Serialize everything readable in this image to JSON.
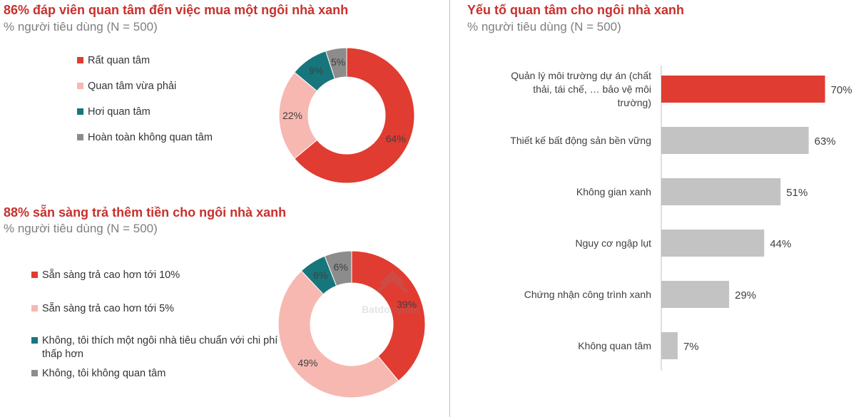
{
  "colors": {
    "red": "#e03c31",
    "pink": "#f7b8b2",
    "teal": "#17767b",
    "grey": "#8c8c8c",
    "bar_grey": "#c3c3c3",
    "title_red": "#c9302c"
  },
  "watermark": {
    "text": "Batdongsan"
  },
  "chart_data": [
    {
      "type": "pie",
      "title": "86% đáp viên quan tâm đến việc mua một ngôi nhà xanh",
      "subtitle": "% người tiêu dùng (N = 500)",
      "legend_position": "left",
      "categories": [
        "Rất quan tâm",
        "Quan tâm vừa phải",
        "Hơi quan tâm",
        "Hoàn toàn không quan tâm"
      ],
      "values": [
        64,
        22,
        9,
        5
      ],
      "labels": [
        "64%",
        "22%",
        "9%",
        "5%"
      ],
      "colors": [
        "#e03c31",
        "#f7b8b2",
        "#17767b",
        "#8c8c8c"
      ]
    },
    {
      "type": "pie",
      "title": "88% sẵn sàng trả thêm tiền cho ngôi nhà xanh",
      "subtitle": "% người tiêu dùng (N = 500)",
      "legend_position": "left",
      "categories": [
        "Sẵn sàng trả cao hơn tới 10%",
        "Sẵn sàng trả cao hơn tới 5%",
        "Không, tôi thích một ngôi nhà tiêu chuẩn với chi phí thấp hơn",
        "Không, tôi không quan tâm"
      ],
      "values": [
        39,
        49,
        6,
        6
      ],
      "labels": [
        "39%",
        "49%",
        "6%",
        "6%"
      ],
      "colors": [
        "#e03c31",
        "#f7b8b2",
        "#17767b",
        "#8c8c8c"
      ]
    },
    {
      "type": "bar",
      "orientation": "horizontal",
      "title": "Yếu tố quan tâm cho ngôi nhà xanh",
      "subtitle": "% người tiêu dùng (N = 500)",
      "categories": [
        "Quản lý môi trường dự án (chất thải, tái chế, … bảo vệ môi trường)",
        "Thiết kế bất động sản bền vững",
        "Không gian xanh",
        "Nguy cơ ngập lụt",
        "Chứng nhận công trình xanh",
        "Không quan tâm"
      ],
      "values": [
        70,
        63,
        51,
        44,
        29,
        7
      ],
      "labels": [
        "70%",
        "63%",
        "51%",
        "44%",
        "29%",
        "7%"
      ],
      "colors": [
        "#e03c31",
        "#c3c3c3",
        "#c3c3c3",
        "#c3c3c3",
        "#c3c3c3",
        "#c3c3c3"
      ],
      "xlim": [
        0,
        100
      ],
      "grid": false
    }
  ]
}
